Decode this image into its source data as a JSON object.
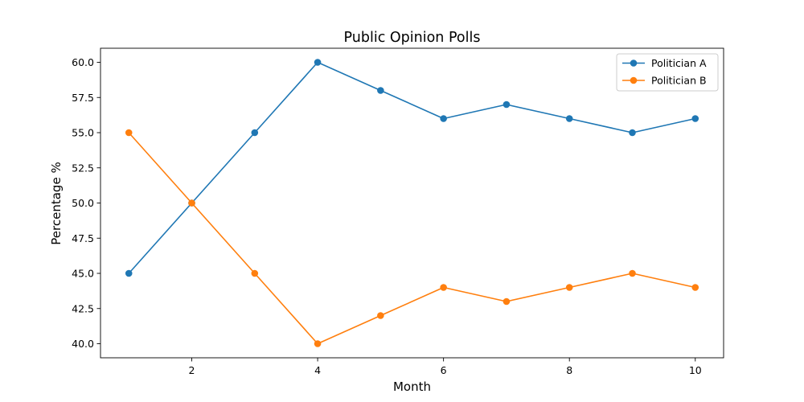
{
  "chart_data": {
    "type": "line",
    "title": "Public Opinion Polls",
    "xlabel": "Month",
    "ylabel": "Percentage %",
    "x": [
      1,
      2,
      3,
      4,
      5,
      6,
      7,
      8,
      9,
      10
    ],
    "xlim": [
      0.55,
      10.45
    ],
    "ylim": [
      39.0,
      61.0
    ],
    "xticks": [
      2,
      4,
      6,
      8,
      10
    ],
    "xtick_labels": [
      "2",
      "4",
      "6",
      "8",
      "10"
    ],
    "yticks": [
      40.0,
      42.5,
      45.0,
      47.5,
      50.0,
      52.5,
      55.0,
      57.5,
      60.0
    ],
    "ytick_labels": [
      "40.0",
      "42.5",
      "45.0",
      "47.5",
      "50.0",
      "52.5",
      "55.0",
      "57.5",
      "60.0"
    ],
    "grid": false,
    "legend_position": "top-right",
    "series": [
      {
        "name": "Politician A",
        "color": "#1f77b4",
        "marker": "circle",
        "values": [
          45,
          50,
          55,
          60,
          58,
          56,
          57,
          56,
          55,
          56
        ]
      },
      {
        "name": "Politician B",
        "color": "#ff7f0e",
        "marker": "circle",
        "values": [
          55,
          50,
          45,
          40,
          42,
          44,
          43,
          44,
          45,
          44
        ]
      }
    ]
  }
}
